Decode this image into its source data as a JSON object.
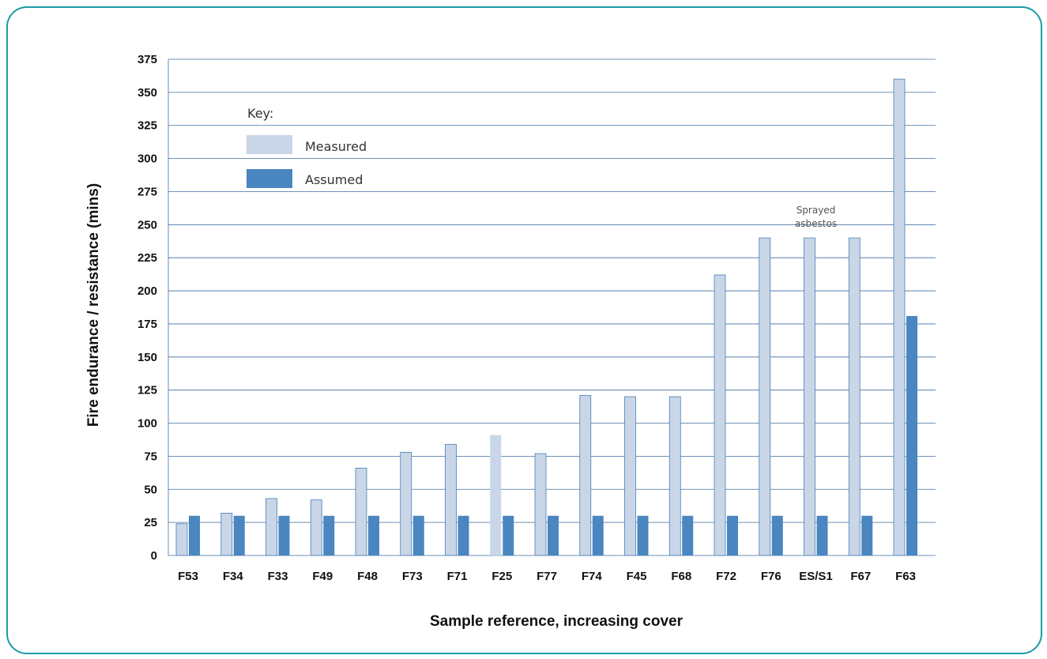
{
  "chart_data": {
    "type": "bar",
    "xlabel": "Sample reference, increasing cover",
    "ylabel": "Fire endurance / resistance (mins)",
    "ylim": [
      0,
      375
    ],
    "yticks": [
      0,
      25,
      50,
      75,
      100,
      125,
      150,
      175,
      200,
      225,
      250,
      275,
      300,
      325,
      350,
      375
    ],
    "grid": true,
    "categories": [
      "F53",
      "F34",
      "F33",
      "F49",
      "F48",
      "F73",
      "F71",
      "F25",
      "F77",
      "F74",
      "F45",
      "F68",
      "F72",
      "F76",
      "ES/S1",
      "F67",
      "F63"
    ],
    "legend": {
      "title": "Key:",
      "position": "top-left"
    },
    "series": [
      {
        "name": "Measured",
        "color": "#c9d6e7",
        "values": [
          24,
          32,
          43,
          42,
          66,
          78,
          84,
          91,
          77,
          121,
          120,
          120,
          212,
          240,
          240,
          240,
          360
        ]
      },
      {
        "name": "Assumed",
        "color": "#4a86c0",
        "values": [
          30,
          30,
          30,
          30,
          30,
          30,
          30,
          30,
          30,
          30,
          30,
          30,
          30,
          30,
          30,
          30,
          181
        ]
      }
    ],
    "annotations": [
      {
        "category": "ES/S1",
        "lines": [
          "Sprayed",
          "asbestos"
        ]
      }
    ]
  }
}
